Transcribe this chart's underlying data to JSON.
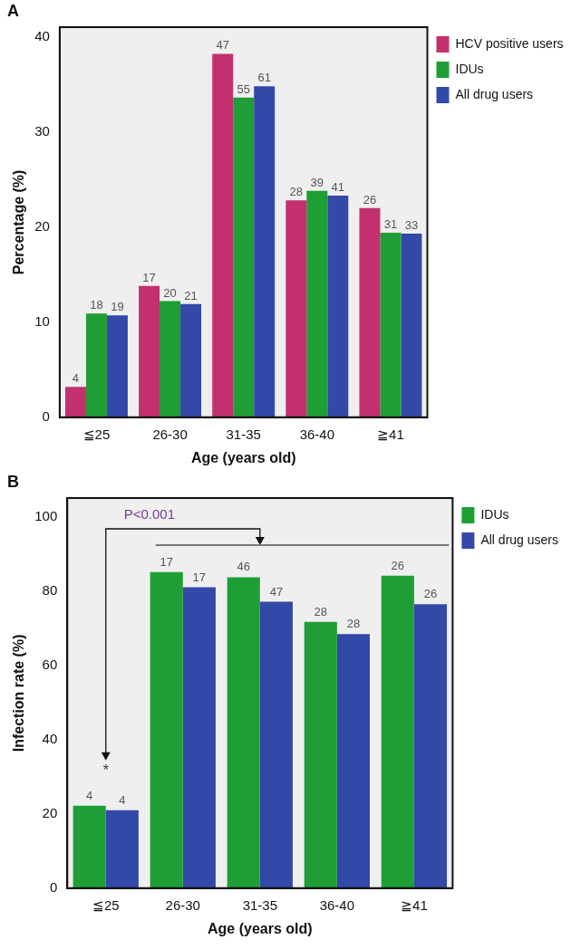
{
  "chart_data": [
    {
      "type": "bar",
      "title": "A",
      "xlabel": "Age (years old)",
      "ylabel": "Percentage (%)",
      "categories": [
        "≦25",
        "26-30",
        "31-35",
        "36-40",
        "≧41"
      ],
      "ylim": [
        0,
        41
      ],
      "yticks": [
        0,
        10,
        20,
        30,
        40
      ],
      "grid": false,
      "legend": "top right",
      "annotations": [
        "4",
        "17",
        "47",
        "28",
        "26",
        "18",
        "20",
        "55",
        "39",
        "31",
        "19",
        "21",
        "61",
        "41",
        "33"
      ],
      "series": [
        {
          "name": "HCV positive users",
          "color": "#c2306f",
          "values": [
            3.2,
            13.8,
            38.2,
            22.8,
            22.0
          ]
        },
        {
          "name": "IDUs",
          "color": "#1f9e35",
          "values": [
            10.9,
            12.2,
            33.6,
            23.8,
            19.4
          ]
        },
        {
          "name": "All drug users",
          "color": "#3349a8",
          "values": [
            10.7,
            11.9,
            34.8,
            23.3,
            19.3
          ]
        }
      ]
    },
    {
      "type": "bar",
      "title": "B",
      "xlabel": "Age (years old)",
      "ylabel": "Infection rate (%)",
      "categories": [
        "≦25",
        "26-30",
        "31-35",
        "36-40",
        "≧41"
      ],
      "ylim": [
        0,
        105
      ],
      "yticks": [
        0,
        20,
        40,
        60,
        80,
        100
      ],
      "grid": false,
      "legend": "top right",
      "annotations": [
        "P<0.001",
        "*",
        {
          "text": "4",
          "x": "≦25",
          "y": 22.2
        },
        {
          "text": "17",
          "x": "26-30",
          "y": 85.1
        },
        {
          "text": "46",
          "x": "31-35",
          "y": 83.7
        },
        {
          "text": "28",
          "x": "36-40",
          "y": 71.7
        },
        {
          "text": "26",
          "x": "≧41",
          "y": 84.1
        },
        {
          "text": "4",
          "x": "≦25",
          "y": 21.0
        },
        {
          "text": "17",
          "x": "26-30",
          "y": 81.0
        },
        {
          "text": "47",
          "x": "31-35",
          "y": 77.1
        },
        {
          "text": "28",
          "x": "36-40",
          "y": 68.4
        },
        {
          "text": "26",
          "x": "≧41",
          "y": 76.4
        }
      ],
      "series": [
        {
          "name": "IDUs",
          "color": "#1f9e35",
          "values": [
            22.2,
            85.1,
            83.7,
            71.7,
            84.1
          ]
        },
        {
          "name": "All drug users",
          "color": "#3349a8",
          "values": [
            21.0,
            81.0,
            77.1,
            68.4,
            76.4
          ]
        }
      ]
    }
  ]
}
